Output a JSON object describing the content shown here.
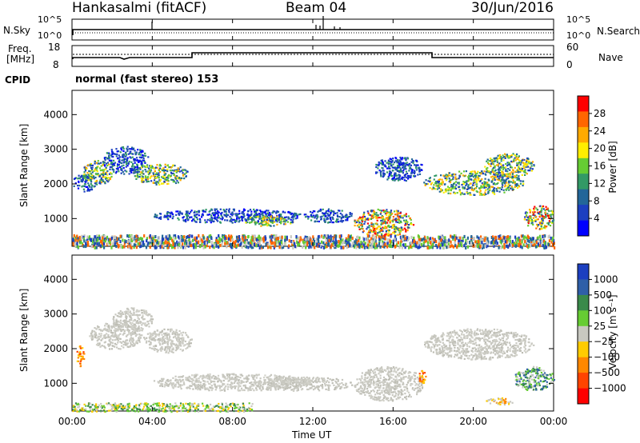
{
  "header": {
    "title": "Hankasalmi (fitACF)",
    "beam": "Beam 04",
    "date": "30/Jun/2016"
  },
  "top_panels": {
    "nsky_label": "N.Sky",
    "nsky_ticks": [
      "10^5",
      "10^0"
    ],
    "nsearch_label": "N.Search",
    "nsearch_ticks": [
      "10^5",
      "10^0"
    ],
    "freq_label_line1": "Freq.",
    "freq_label_line2": "[MHz]",
    "freq_ticks": [
      "18",
      "8"
    ],
    "nave_label": "Nave",
    "nave_ticks": [
      "60",
      "0"
    ],
    "cpid_label": "CPID",
    "cpid_text": "normal (fast stereo) 153"
  },
  "x_axis": {
    "label": "Time UT",
    "ticks": [
      "00:00",
      "04:00",
      "08:00",
      "12:00",
      "16:00",
      "20:00",
      "00:00"
    ]
  },
  "chart_data": [
    {
      "type": "heatmap",
      "title": "",
      "ylabel": "Slant Range [km]",
      "yticks": [
        "1000",
        "2000",
        "3000",
        "4000"
      ],
      "ylim": [
        200,
        4700
      ],
      "xlim_hours": [
        0,
        24
      ],
      "colorbar_label": "Power [dB]",
      "colorbar_ticks": [
        "28",
        "24",
        "20",
        "16",
        "12",
        "8",
        "4"
      ],
      "colorbar_colors": [
        "#ff0000",
        "#ff6600",
        "#ffaa00",
        "#ffee00",
        "#66cc33",
        "#339966",
        "#226699",
        "#1c3fc0",
        "#0000ff"
      ],
      "echo_regions": [
        {
          "t0": 0.0,
          "t1": 1.2,
          "r0": 1800,
          "r1": 2300,
          "level": "low"
        },
        {
          "t0": 0.5,
          "t1": 2.0,
          "r0": 2000,
          "r1": 2700,
          "level": "mid"
        },
        {
          "t0": 1.5,
          "t1": 3.8,
          "r0": 2300,
          "r1": 3100,
          "level": "low"
        },
        {
          "t0": 3.0,
          "t1": 5.8,
          "r0": 2000,
          "r1": 2600,
          "level": "mid"
        },
        {
          "t0": 4.0,
          "t1": 11.5,
          "r0": 900,
          "r1": 1300,
          "level": "low"
        },
        {
          "t0": 8.5,
          "t1": 11.0,
          "r0": 800,
          "r1": 1100,
          "level": "mid"
        },
        {
          "t0": 11.5,
          "t1": 14.0,
          "r0": 900,
          "r1": 1300,
          "level": "low"
        },
        {
          "t0": 14.0,
          "t1": 17.0,
          "r0": 500,
          "r1": 1300,
          "level": "high"
        },
        {
          "t0": 15.0,
          "t1": 17.5,
          "r0": 2100,
          "r1": 2800,
          "level": "low"
        },
        {
          "t0": 17.5,
          "t1": 22.5,
          "r0": 1700,
          "r1": 2400,
          "level": "mid"
        },
        {
          "t0": 20.5,
          "t1": 23.0,
          "r0": 2200,
          "r1": 2900,
          "level": "mid"
        },
        {
          "t0": 22.5,
          "t1": 24.0,
          "r0": 700,
          "r1": 1400,
          "level": "high"
        },
        {
          "t0": 0.0,
          "t1": 24.0,
          "r0": 200,
          "r1": 550,
          "level": "noise"
        }
      ]
    },
    {
      "type": "heatmap",
      "title": "",
      "ylabel": "Slant Range [km]",
      "yticks": [
        "1000",
        "2000",
        "3000",
        "4000"
      ],
      "ylim": [
        200,
        4700
      ],
      "xlim_hours": [
        0,
        24
      ],
      "colorbar_label": "Velocity [m s⁻¹]",
      "colorbar_ticks": [
        "1000",
        "500",
        "100",
        "25",
        "−25",
        "−100",
        "−500",
        "−1000"
      ],
      "colorbar_colors": [
        "#1c3fc0",
        "#2f5fa8",
        "#3a8a4a",
        "#66cc33",
        "#c8c8c0",
        "#ffcc00",
        "#ff8800",
        "#ff4400",
        "#ff0000"
      ],
      "echo_regions": [
        {
          "t0": 0.2,
          "t1": 0.6,
          "r0": 1500,
          "r1": 2100,
          "level": "neg_high"
        },
        {
          "t0": 0.8,
          "t1": 3.5,
          "r0": 2000,
          "r1": 2800,
          "level": "zero"
        },
        {
          "t0": 2.0,
          "t1": 4.0,
          "r0": 2500,
          "r1": 3200,
          "level": "zero"
        },
        {
          "t0": 3.5,
          "t1": 6.0,
          "r0": 1900,
          "r1": 2600,
          "level": "zero"
        },
        {
          "t0": 4.0,
          "t1": 12.0,
          "r0": 800,
          "r1": 1300,
          "level": "zero"
        },
        {
          "t0": 9.0,
          "t1": 14.0,
          "r0": 800,
          "r1": 1200,
          "level": "zero"
        },
        {
          "t0": 14.0,
          "t1": 17.5,
          "r0": 500,
          "r1": 1500,
          "level": "zero"
        },
        {
          "t0": 17.2,
          "t1": 17.6,
          "r0": 1000,
          "r1": 1400,
          "level": "neg_high"
        },
        {
          "t0": 17.5,
          "t1": 23.0,
          "r0": 1700,
          "r1": 2600,
          "level": "zero"
        },
        {
          "t0": 22.0,
          "t1": 24.0,
          "r0": 800,
          "r1": 1500,
          "level": "pos_mid"
        },
        {
          "t0": 0.0,
          "t1": 9.0,
          "r0": 200,
          "r1": 450,
          "level": "pos_low"
        },
        {
          "t0": 20.5,
          "t1": 22.0,
          "r0": 400,
          "r1": 600,
          "level": "neg_mid"
        }
      ]
    }
  ]
}
